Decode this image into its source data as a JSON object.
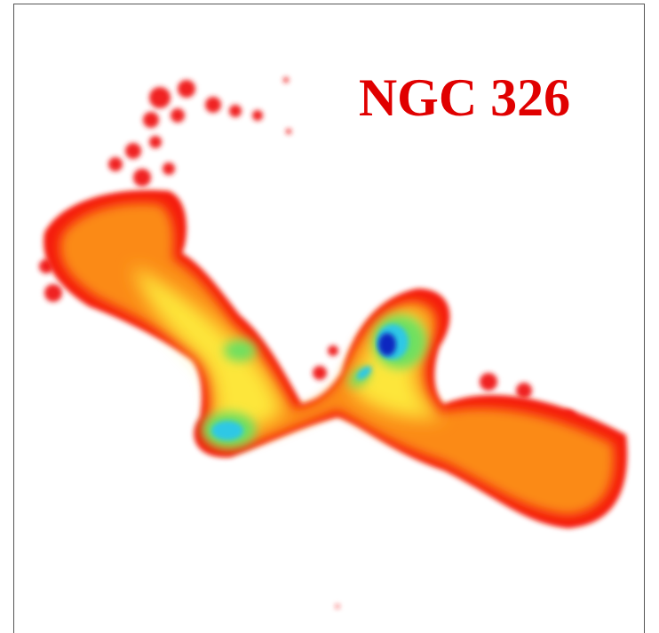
{
  "image": {
    "title": "NGC 326"
  }
}
